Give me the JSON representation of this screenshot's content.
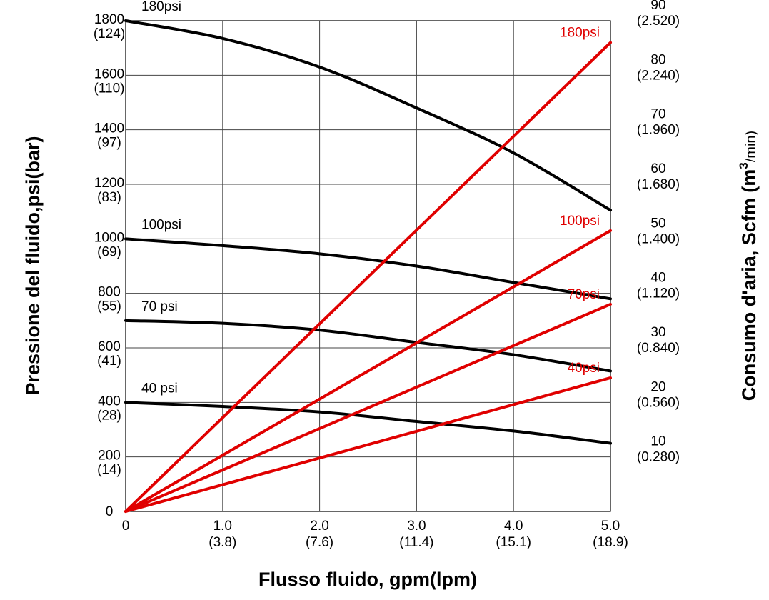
{
  "chart_data": {
    "type": "line",
    "xlabel": "Flusso fluido, gpm(lpm)",
    "ylabel": "Pressione del fluido,psi(bar)",
    "y2label_main": "Consumo d'aria,  Scfm (m",
    "y2label_sup": "3",
    "y2label_end": "/min)",
    "xlim": [
      0,
      5
    ],
    "ylim": [
      0,
      1800
    ],
    "y2lim": [
      0,
      90
    ],
    "grid": true,
    "x_ticks": [
      {
        "value": 0,
        "label": "0",
        "sub": ""
      },
      {
        "value": 1,
        "label": "1.0",
        "sub": "(3.8)"
      },
      {
        "value": 2,
        "label": "2.0",
        "sub": "(7.6)"
      },
      {
        "value": 3,
        "label": "3.0",
        "sub": "(11.4)"
      },
      {
        "value": 4,
        "label": "4.0",
        "sub": "(15.1)"
      },
      {
        "value": 5,
        "label": "5.0",
        "sub": "(18.9)"
      }
    ],
    "y_ticks": [
      {
        "value": 0,
        "label": "0",
        "sub": ""
      },
      {
        "value": 200,
        "label": "200",
        "sub": "(14)"
      },
      {
        "value": 400,
        "label": "400",
        "sub": "(28)"
      },
      {
        "value": 600,
        "label": "600",
        "sub": "(41)"
      },
      {
        "value": 800,
        "label": "800",
        "sub": "(55)"
      },
      {
        "value": 1000,
        "label": "1000",
        "sub": "(69)"
      },
      {
        "value": 1200,
        "label": "1200",
        "sub": "(83)"
      },
      {
        "value": 1400,
        "label": "1400",
        "sub": "(97)"
      },
      {
        "value": 1600,
        "label": "1600",
        "sub": "(110)"
      },
      {
        "value": 1800,
        "label": "1800",
        "sub": "(124)"
      }
    ],
    "y2_ticks": [
      {
        "value": 10,
        "label": "10",
        "sub": "(0.280)"
      },
      {
        "value": 20,
        "label": "20",
        "sub": "(0.560)"
      },
      {
        "value": 30,
        "label": "30",
        "sub": "(0.840)"
      },
      {
        "value": 40,
        "label": "40",
        "sub": "(1.120)"
      },
      {
        "value": 50,
        "label": "50",
        "sub": "(1.400)"
      },
      {
        "value": 60,
        "label": "60",
        "sub": "(1.680)"
      },
      {
        "value": 70,
        "label": "70",
        "sub": "(1.960)"
      },
      {
        "value": 80,
        "label": "80",
        "sub": "(2.240)"
      },
      {
        "value": 90,
        "label": "90",
        "sub": "(2.520)"
      }
    ],
    "pressure_series": [
      {
        "name": "180psi",
        "color": "#000000",
        "axis": "left",
        "x": [
          0,
          1,
          2,
          3,
          4,
          5
        ],
        "y": [
          1800,
          1735,
          1630,
          1480,
          1315,
          1105
        ]
      },
      {
        "name": "100psi",
        "color": "#000000",
        "axis": "left",
        "x": [
          0,
          1,
          2,
          3,
          4,
          5
        ],
        "y": [
          1000,
          975,
          945,
          900,
          840,
          780
        ]
      },
      {
        "name": "70 psi",
        "color": "#000000",
        "axis": "left",
        "x": [
          0,
          1,
          2,
          3,
          4,
          5
        ],
        "y": [
          700,
          690,
          665,
          620,
          575,
          515
        ]
      },
      {
        "name": "40 psi",
        "color": "#000000",
        "axis": "left",
        "x": [
          0,
          1,
          2,
          3,
          4,
          5
        ],
        "y": [
          400,
          385,
          365,
          330,
          295,
          250
        ]
      }
    ],
    "air_series": [
      {
        "name": "180psi",
        "color": "#e00000",
        "axis": "right",
        "x": [
          0,
          5
        ],
        "y": [
          0,
          86
        ]
      },
      {
        "name": "100psi",
        "color": "#e00000",
        "axis": "right",
        "x": [
          0,
          5
        ],
        "y": [
          0,
          51.5
        ]
      },
      {
        "name": "70psi",
        "color": "#e00000",
        "axis": "right",
        "x": [
          0,
          5
        ],
        "y": [
          0,
          38
        ]
      },
      {
        "name": "40psi",
        "color": "#e00000",
        "axis": "right",
        "x": [
          0,
          5
        ],
        "y": [
          0,
          24.5
        ]
      }
    ]
  }
}
